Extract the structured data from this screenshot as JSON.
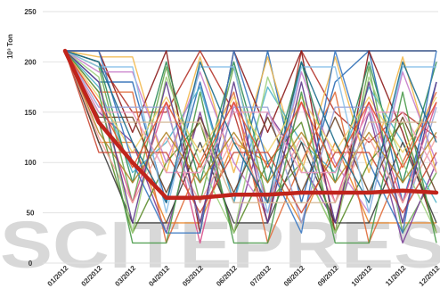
{
  "chart_data": {
    "type": "line",
    "ylabel": "10³ Ton",
    "ylim": [
      0,
      250
    ],
    "yticks": [
      "0",
      "50",
      "100",
      "150",
      "200",
      "250"
    ],
    "yticks_values": [
      0,
      50,
      100,
      150,
      200,
      250
    ],
    "categories": [
      "01/2012",
      "02/2012",
      "03/2012",
      "04/2012",
      "05/2012",
      "06/2012",
      "07/2012",
      "08/2012",
      "09/2012",
      "10/2012",
      "11/2012",
      "12/2012"
    ],
    "grid": true,
    "legend": "none",
    "watermark": "SCITEPRESS",
    "highlight": {
      "color": "#c0241c",
      "values": [
        211,
        140,
        100,
        65,
        65,
        68,
        68,
        70,
        70,
        70,
        72,
        70
      ]
    },
    "series": [
      {
        "color": "#1f3f7a",
        "values": [
          211,
          211,
          211,
          211,
          211,
          211,
          211,
          211,
          211,
          211,
          211,
          211
        ]
      },
      {
        "color": "#b5342a",
        "values": [
          211,
          200,
          150,
          150,
          211,
          150,
          40,
          211,
          150,
          120,
          150,
          125
        ]
      },
      {
        "color": "#e8852a",
        "values": [
          211,
          120,
          120,
          40,
          40,
          120,
          100,
          40,
          120,
          40,
          40,
          40
        ]
      },
      {
        "color": "#2a6bb5",
        "values": [
          211,
          180,
          180,
          60,
          180,
          60,
          211,
          60,
          180,
          211,
          60,
          180
        ]
      },
      {
        "color": "#6aa84f",
        "values": [
          211,
          195,
          60,
          195,
          60,
          195,
          60,
          100,
          30,
          195,
          30,
          90
        ]
      },
      {
        "color": "#7b3f98",
        "values": [
          211,
          150,
          120,
          30,
          150,
          30,
          150,
          100,
          40,
          150,
          20,
          100
        ]
      },
      {
        "color": "#d94f8a",
        "values": [
          211,
          160,
          60,
          160,
          20,
          160,
          60,
          160,
          60,
          160,
          60,
          160
        ]
      },
      {
        "color": "#f2b84b",
        "values": [
          211,
          205,
          205,
          90,
          205,
          90,
          205,
          90,
          205,
          90,
          205,
          90
        ]
      },
      {
        "color": "#4fb3c8",
        "values": [
          211,
          175,
          90,
          120,
          175,
          60,
          175,
          120,
          90,
          175,
          120,
          60
        ]
      },
      {
        "color": "#8b1a1a",
        "values": [
          211,
          211,
          130,
          211,
          30,
          211,
          130,
          211,
          30,
          211,
          130,
          30
        ]
      },
      {
        "color": "#5b8c2a",
        "values": [
          211,
          140,
          30,
          100,
          140,
          30,
          100,
          140,
          30,
          100,
          140,
          30
        ]
      },
      {
        "color": "#c77dca",
        "values": [
          211,
          190,
          190,
          100,
          190,
          100,
          50,
          190,
          100,
          50,
          190,
          100
        ]
      },
      {
        "color": "#3c3c3c",
        "values": [
          211,
          120,
          40,
          40,
          120,
          40,
          40,
          120,
          40,
          40,
          120,
          40
        ]
      },
      {
        "color": "#e06c3a",
        "values": [
          211,
          170,
          170,
          20,
          100,
          170,
          20,
          100,
          170,
          20,
          100,
          170
        ]
      },
      {
        "color": "#2e8b57",
        "values": [
          211,
          200,
          80,
          200,
          80,
          200,
          80,
          200,
          80,
          200,
          80,
          200
        ]
      },
      {
        "color": "#9aa3d8",
        "values": [
          211,
          155,
          155,
          155,
          40,
          155,
          155,
          40,
          155,
          155,
          40,
          155
        ]
      },
      {
        "color": "#f4a6a0",
        "values": [
          211,
          125,
          60,
          125,
          60,
          125,
          60,
          125,
          60,
          125,
          60,
          125
        ]
      },
      {
        "color": "#a0d080",
        "values": [
          211,
          185,
          30,
          185,
          100,
          30,
          185,
          100,
          30,
          185,
          100,
          30
        ]
      },
      {
        "color": "#6b4226",
        "values": [
          211,
          145,
          145,
          70,
          145,
          70,
          145,
          70,
          145,
          70,
          145,
          70
        ]
      },
      {
        "color": "#f2d16b",
        "values": [
          211,
          165,
          110,
          165,
          110,
          165,
          110,
          165,
          110,
          165,
          110,
          165
        ]
      },
      {
        "color": "#3a78c2",
        "values": [
          211,
          211,
          100,
          30,
          30,
          211,
          100,
          30,
          211,
          100,
          30,
          211
        ]
      },
      {
        "color": "#cc4b37",
        "values": [
          211,
          110,
          110,
          110,
          50,
          110,
          110,
          50,
          110,
          110,
          50,
          110
        ]
      },
      {
        "color": "#88c0e8",
        "values": [
          211,
          195,
          195,
          50,
          195,
          195,
          50,
          195,
          195,
          50,
          195,
          195
        ]
      },
      {
        "color": "#b3862a",
        "values": [
          211,
          130,
          80,
          130,
          80,
          130,
          80,
          130,
          80,
          130,
          80,
          130
        ]
      },
      {
        "color": "#5e3a8c",
        "values": [
          211,
          180,
          40,
          180,
          40,
          180,
          40,
          180,
          40,
          180,
          40,
          180
        ]
      },
      {
        "color": "#e89ac0",
        "values": [
          211,
          150,
          150,
          90,
          90,
          150,
          150,
          90,
          90,
          150,
          150,
          90
        ]
      },
      {
        "color": "#4a9a4a",
        "values": [
          211,
          170,
          20,
          20,
          170,
          20,
          20,
          170,
          20,
          20,
          170,
          20
        ]
      },
      {
        "color": "#d4b896",
        "values": [
          211,
          140,
          140,
          140,
          140,
          60,
          60,
          60,
          60,
          140,
          140,
          140
        ]
      },
      {
        "color": "#1a6a8a",
        "values": [
          211,
          200,
          120,
          60,
          200,
          120,
          60,
          200,
          120,
          60,
          200,
          120
        ]
      },
      {
        "color": "#e4572e",
        "values": [
          211,
          160,
          95,
          160,
          95,
          160,
          95,
          160,
          95,
          160,
          95,
          160
        ]
      }
    ]
  }
}
